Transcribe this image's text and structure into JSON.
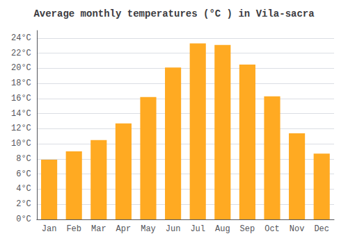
{
  "chart_data": {
    "type": "bar",
    "title": "Average monthly temperatures (°C ) in Vila-sacra",
    "categories": [
      "Jan",
      "Feb",
      "Mar",
      "Apr",
      "May",
      "Jun",
      "Jul",
      "Aug",
      "Sep",
      "Oct",
      "Nov",
      "Dec"
    ],
    "values": [
      7.9,
      9.0,
      10.5,
      12.7,
      16.2,
      20.1,
      23.3,
      23.1,
      20.5,
      16.3,
      11.4,
      8.7
    ],
    "color": "#FFAA22",
    "ylim": [
      0,
      25
    ],
    "yticks": [
      {
        "value": 0,
        "label": "0°C"
      },
      {
        "value": 2,
        "label": "2°C"
      },
      {
        "value": 4,
        "label": "4°C"
      },
      {
        "value": 6,
        "label": "6°C"
      },
      {
        "value": 8,
        "label": "8°C"
      },
      {
        "value": 10,
        "label": "10°C"
      },
      {
        "value": 12,
        "label": "12°C"
      },
      {
        "value": 14,
        "label": "14°C"
      },
      {
        "value": 16,
        "label": "16°C"
      },
      {
        "value": 18,
        "label": "18°C"
      },
      {
        "value": 20,
        "label": "20°C"
      },
      {
        "value": 22,
        "label": "22°C"
      },
      {
        "value": 24,
        "label": "24°C"
      }
    ],
    "grid": true
  }
}
